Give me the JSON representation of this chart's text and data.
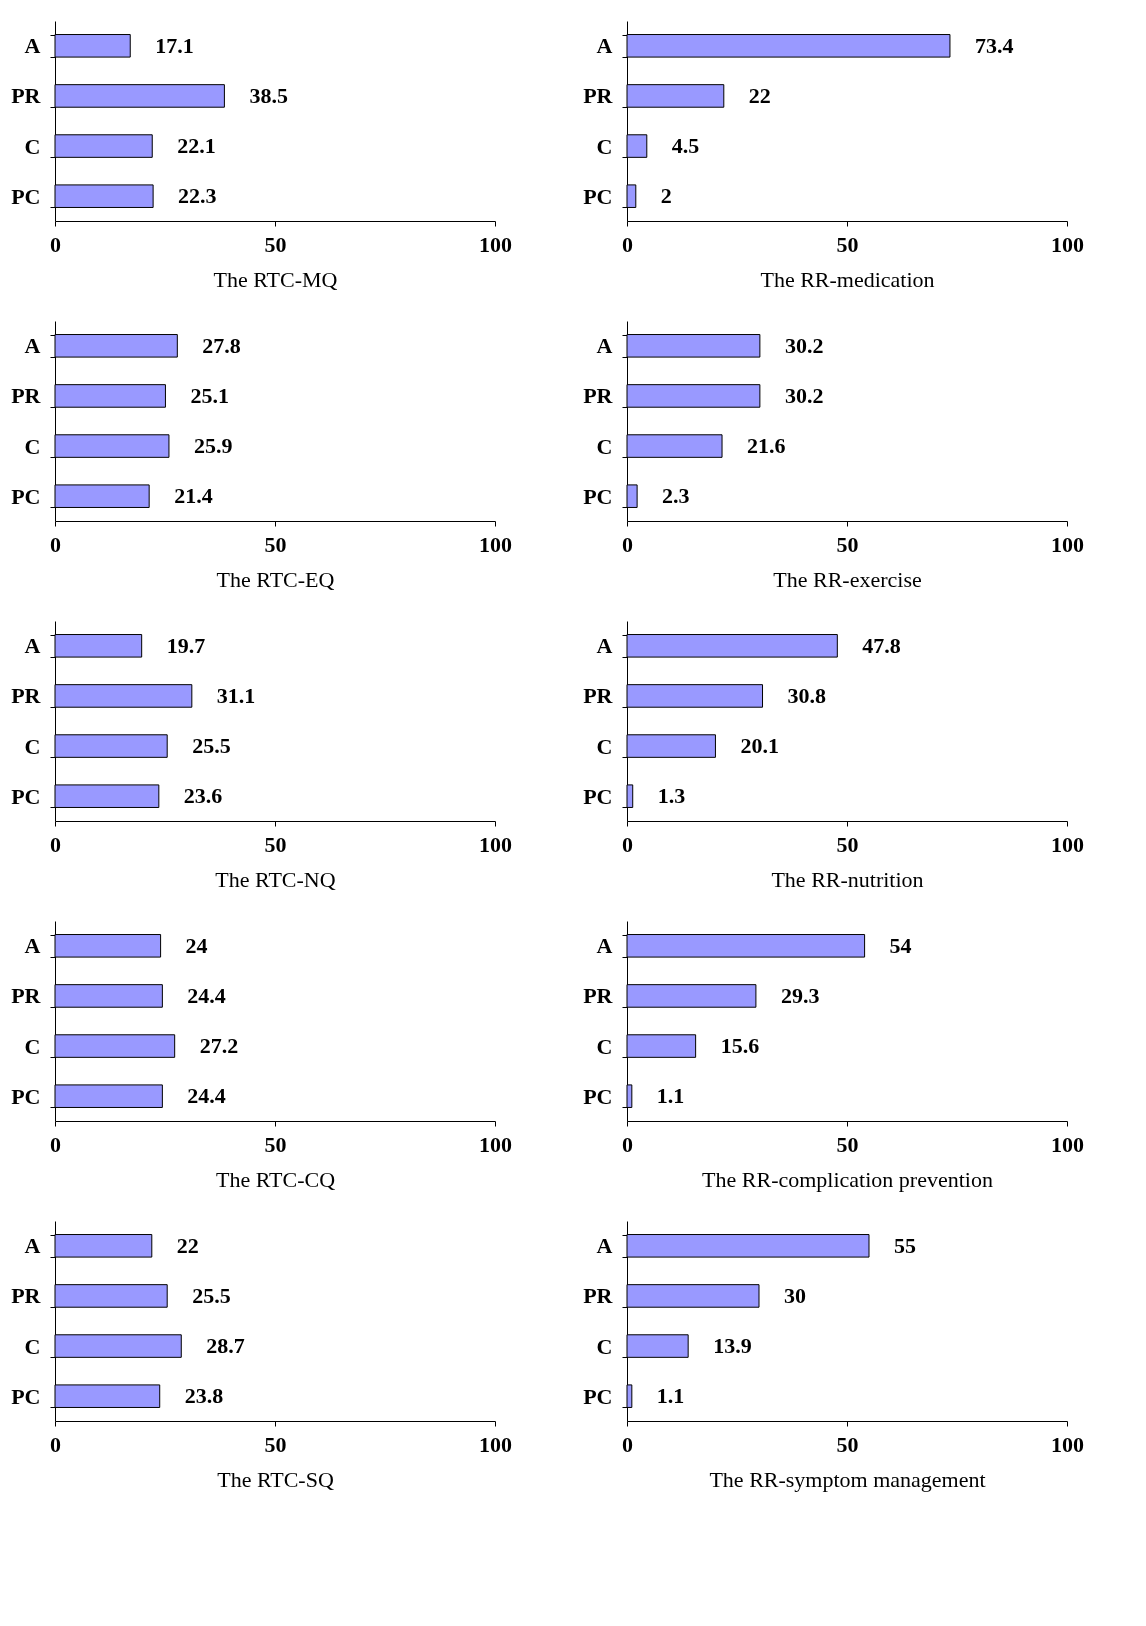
{
  "chart_data": [
    {
      "type": "bar",
      "orientation": "horizontal",
      "xlabel": "The RTC-MQ",
      "categories": [
        "A",
        "PR",
        "C",
        "PC"
      ],
      "values": [
        17.1,
        38.5,
        22.1,
        22.3
      ],
      "color": "#9999ff",
      "xlim": [
        0,
        100
      ],
      "xticks": [
        0,
        50,
        100
      ],
      "data_labels": true,
      "grid": false
    },
    {
      "type": "bar",
      "orientation": "horizontal",
      "xlabel": "The RR-medication",
      "categories": [
        "A",
        "PR",
        "C",
        "PC"
      ],
      "values": [
        73.4,
        22,
        4.5,
        2
      ],
      "color": "#9999ff",
      "xlim": [
        0,
        100
      ],
      "xticks": [
        0,
        50,
        100
      ],
      "data_labels": true,
      "grid": false
    },
    {
      "type": "bar",
      "orientation": "horizontal",
      "xlabel": "The RTC-EQ",
      "categories": [
        "A",
        "PR",
        "C",
        "PC"
      ],
      "values": [
        27.8,
        25.1,
        25.9,
        21.4
      ],
      "color": "#9999ff",
      "xlim": [
        0,
        100
      ],
      "xticks": [
        0,
        50,
        100
      ],
      "data_labels": true,
      "grid": false
    },
    {
      "type": "bar",
      "orientation": "horizontal",
      "xlabel": "The RR-exercise",
      "categories": [
        "A",
        "PR",
        "C",
        "PC"
      ],
      "values": [
        30.2,
        30.2,
        21.6,
        2.3
      ],
      "color": "#9999ff",
      "xlim": [
        0,
        100
      ],
      "xticks": [
        0,
        50,
        100
      ],
      "data_labels": true,
      "grid": false
    },
    {
      "type": "bar",
      "orientation": "horizontal",
      "xlabel": "The RTC-NQ",
      "categories": [
        "A",
        "PR",
        "C",
        "PC"
      ],
      "values": [
        19.7,
        31.1,
        25.5,
        23.6
      ],
      "color": "#9999ff",
      "xlim": [
        0,
        100
      ],
      "xticks": [
        0,
        50,
        100
      ],
      "data_labels": true,
      "grid": false
    },
    {
      "type": "bar",
      "orientation": "horizontal",
      "xlabel": "The RR-nutrition",
      "categories": [
        "A",
        "PR",
        "C",
        "PC"
      ],
      "values": [
        47.8,
        30.8,
        20.1,
        1.3
      ],
      "color": "#9999ff",
      "xlim": [
        0,
        100
      ],
      "xticks": [
        0,
        50,
        100
      ],
      "data_labels": true,
      "grid": false
    },
    {
      "type": "bar",
      "orientation": "horizontal",
      "xlabel": "The RTC-CQ",
      "categories": [
        "A",
        "PR",
        "C",
        "PC"
      ],
      "values": [
        24,
        24.4,
        27.2,
        24.4
      ],
      "color": "#9999ff",
      "xlim": [
        0,
        100
      ],
      "xticks": [
        0,
        50,
        100
      ],
      "data_labels": true,
      "grid": false
    },
    {
      "type": "bar",
      "orientation": "horizontal",
      "xlabel": "The RR-complication prevention",
      "categories": [
        "A",
        "PR",
        "C",
        "PC"
      ],
      "values": [
        54,
        29.3,
        15.6,
        1.1
      ],
      "color": "#9999ff",
      "xlim": [
        0,
        100
      ],
      "xticks": [
        0,
        50,
        100
      ],
      "data_labels": true,
      "grid": false
    },
    {
      "type": "bar",
      "orientation": "horizontal",
      "xlabel": "The RTC-SQ",
      "categories": [
        "A",
        "PR",
        "C",
        "PC"
      ],
      "values": [
        22,
        25.5,
        28.7,
        23.8
      ],
      "color": "#9999ff",
      "xlim": [
        0,
        100
      ],
      "xticks": [
        0,
        50,
        100
      ],
      "data_labels": true,
      "grid": false
    },
    {
      "type": "bar",
      "orientation": "horizontal",
      "xlabel": "The RR-symptom management",
      "categories": [
        "A",
        "PR",
        "C",
        "PC"
      ],
      "values": [
        55,
        30,
        13.9,
        1.1
      ],
      "color": "#9999ff",
      "xlim": [
        0,
        100
      ],
      "xticks": [
        0,
        50,
        100
      ],
      "data_labels": true,
      "grid": false
    }
  ]
}
